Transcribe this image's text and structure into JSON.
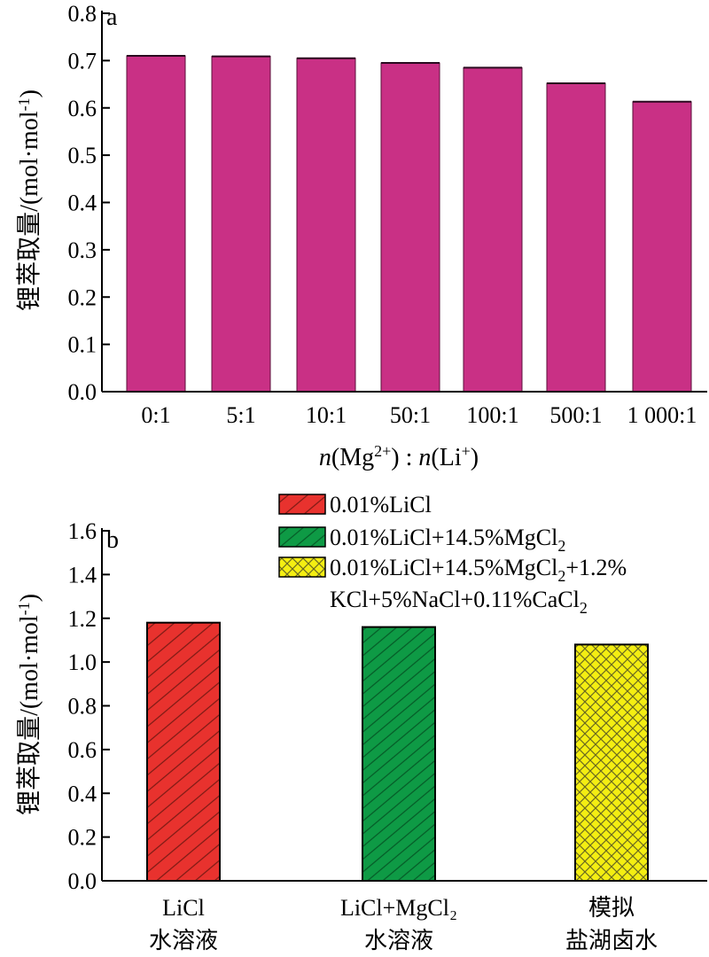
{
  "chart_data": [
    {
      "type": "bar",
      "panel_label": "a",
      "categories": [
        "0:1",
        "5:1",
        "10:1",
        "50:1",
        "100:1",
        "500:1",
        "1 000:1"
      ],
      "values": [
        0.71,
        0.709,
        0.705,
        0.695,
        0.685,
        0.652,
        0.613
      ],
      "xlabel": "n(Mg²⁺) : n(Li⁺)",
      "xlabel_parts": {
        "n1": "n",
        "p1": "(Mg",
        "s1": "2+",
        "p2": ") : ",
        "n2": "n",
        "p3": "(Li",
        "s2": "+",
        "p4": ")"
      },
      "ylabel": "锂萃取量/(mol·mol⁻¹)",
      "ylabel_parts": {
        "main": "锂萃取量/(mol·mol",
        "sup": "-1",
        "close": ")"
      },
      "ylim": [
        0,
        0.8
      ],
      "yticks": [
        "0.0",
        "0.1",
        "0.2",
        "0.3",
        "0.4",
        "0.5",
        "0.6",
        "0.7",
        "0.8"
      ],
      "bar_color": "#C93085",
      "grid": false
    },
    {
      "type": "bar",
      "panel_label": "b",
      "categories": [
        {
          "line1": "LiCl",
          "line2": "水溶液"
        },
        {
          "line1": "LiCl+MgCl₂",
          "line2": "水溶液"
        },
        {
          "line1": "模拟",
          "line2": "盐湖卤水"
        }
      ],
      "values": [
        1.18,
        1.16,
        1.08
      ],
      "colors": [
        "#E8322E",
        "#0E9A45",
        "#F4EE12"
      ],
      "series_legend": [
        {
          "text": "0.01%LiCl",
          "color": "#E8322E",
          "pattern": "diagonal"
        },
        {
          "text": "0.01%LiCl+14.5%MgCl",
          "sub": "2",
          "color": "#0E9A45",
          "pattern": "diagonal-dense"
        },
        {
          "text": "0.01%LiCl+14.5%MgCl",
          "sub": "2",
          "tail": "+1.2%",
          "line2": "KCl+5%NaCl+0.11%CaCl",
          "sub2": "2",
          "color": "#F4EE12",
          "pattern": "crosshatch"
        }
      ],
      "ylabel": "锂萃取量/(mol·mol⁻¹)",
      "ylabel_parts": {
        "main": "锂萃取量/(mol·mol",
        "sup": "-1",
        "close": ")"
      },
      "ylim": [
        0,
        1.6
      ],
      "yticks": [
        "0.0",
        "0.2",
        "0.4",
        "0.6",
        "0.8",
        "1.0",
        "1.2",
        "1.4",
        "1.6"
      ],
      "legend_position": "top-right",
      "grid": false
    }
  ]
}
